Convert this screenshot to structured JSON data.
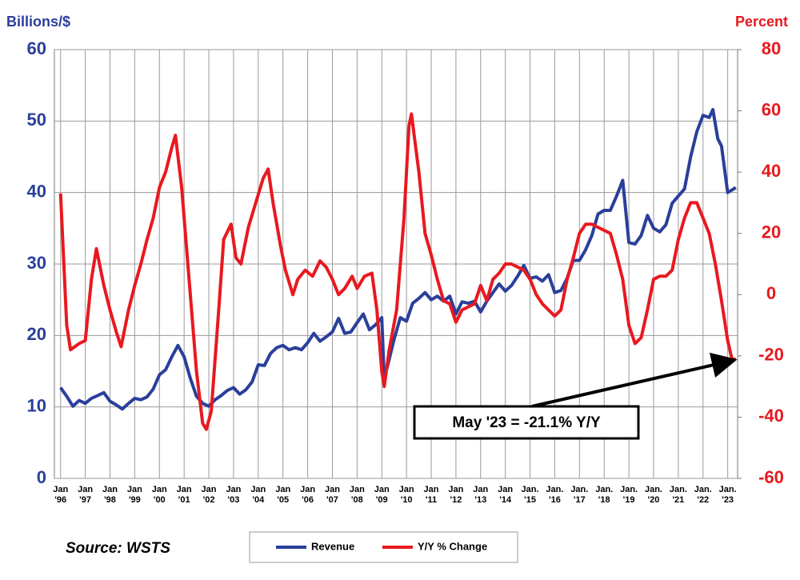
{
  "chart_data": {
    "type": "line",
    "y_label": "Billions/$",
    "y2_label": "Percent",
    "source": "Source: WSTS",
    "annotation": "May '23 = -21.1% Y/Y",
    "xlim": [
      1995.75,
      2023.4
    ],
    "xticks": [
      {
        "value": 1996,
        "label": "Jan '96"
      },
      {
        "value": 1997,
        "label": "Jan '97"
      },
      {
        "value": 1998,
        "label": "Jan '98"
      },
      {
        "value": 1999,
        "label": "Jan '99"
      },
      {
        "value": 2000,
        "label": "Jan '00"
      },
      {
        "value": 2001,
        "label": "Jan '01"
      },
      {
        "value": 2002,
        "label": "Jan '02"
      },
      {
        "value": 2003,
        "label": "Jan '03"
      },
      {
        "value": 2004,
        "label": "Jan '04"
      },
      {
        "value": 2005,
        "label": "Jan '05"
      },
      {
        "value": 2006,
        "label": "Jan '06"
      },
      {
        "value": 2007,
        "label": "Jan '07"
      },
      {
        "value": 2008,
        "label": "Jan '08"
      },
      {
        "value": 2009,
        "label": "Jan '09"
      },
      {
        "value": 2010,
        "label": "Jan '10"
      },
      {
        "value": 2011,
        "label": "Jan '11"
      },
      {
        "value": 2012,
        "label": "Jan '12"
      },
      {
        "value": 2013,
        "label": "Jan '13"
      },
      {
        "value": 2014,
        "label": "Jan '14"
      },
      {
        "value": 2015,
        "label": "Jan. '15"
      },
      {
        "value": 2016,
        "label": "Jan. '16"
      },
      {
        "value": 2017,
        "label": "Jan. '17"
      },
      {
        "value": 2018,
        "label": "Jan. '18"
      },
      {
        "value": 2019,
        "label": "Jan. '19"
      },
      {
        "value": 2020,
        "label": "Jan. '20"
      },
      {
        "value": 2021,
        "label": "Jan. '21"
      },
      {
        "value": 2022,
        "label": "Jan. '22"
      },
      {
        "value": 2023,
        "label": "Jan. '23"
      }
    ],
    "ylim": [
      0,
      60
    ],
    "yticks": [
      0,
      10,
      20,
      30,
      40,
      50,
      60
    ],
    "y2lim": [
      -60,
      80
    ],
    "y2ticks": [
      -60,
      -40,
      -20,
      0,
      20,
      40,
      60,
      80
    ],
    "grid": true,
    "series": [
      {
        "name": "Revenue",
        "color": "#2a3f9a",
        "x": [
          1996.0,
          1996.25,
          1996.5,
          1996.75,
          1997.0,
          1997.25,
          1997.5,
          1997.75,
          1998.0,
          1998.25,
          1998.5,
          1998.75,
          1999.0,
          1999.25,
          1999.5,
          1999.75,
          2000.0,
          2000.25,
          2000.5,
          2000.75,
          2001.0,
          2001.25,
          2001.5,
          2001.75,
          2002.0,
          2002.25,
          2002.5,
          2002.75,
          2003.0,
          2003.25,
          2003.5,
          2003.75,
          2004.0,
          2004.25,
          2004.5,
          2004.75,
          2005.0,
          2005.25,
          2005.5,
          2005.75,
          2006.0,
          2006.25,
          2006.5,
          2006.75,
          2007.0,
          2007.25,
          2007.5,
          2007.75,
          2008.0,
          2008.25,
          2008.5,
          2008.75,
          2009.0,
          2009.1,
          2009.25,
          2009.5,
          2009.75,
          2010.0,
          2010.25,
          2010.5,
          2010.75,
          2011.0,
          2011.25,
          2011.5,
          2011.75,
          2012.0,
          2012.25,
          2012.5,
          2012.75,
          2013.0,
          2013.25,
          2013.5,
          2013.75,
          2014.0,
          2014.25,
          2014.5,
          2014.75,
          2015.0,
          2015.25,
          2015.5,
          2015.75,
          2016.0,
          2016.25,
          2016.5,
          2016.75,
          2017.0,
          2017.25,
          2017.5,
          2017.75,
          2018.0,
          2018.25,
          2018.5,
          2018.75,
          2019.0,
          2019.25,
          2019.5,
          2019.75,
          2020.0,
          2020.25,
          2020.5,
          2020.75,
          2021.0,
          2021.25,
          2021.5,
          2021.75,
          2022.0,
          2022.25,
          2022.4,
          2022.6,
          2022.75,
          2023.0,
          2023.33
        ],
        "values": [
          12.7,
          11.5,
          10.1,
          10.9,
          10.5,
          11.2,
          11.6,
          12.0,
          10.8,
          10.3,
          9.7,
          10.5,
          11.2,
          11.0,
          11.4,
          12.5,
          14.5,
          15.2,
          17.0,
          18.6,
          17.0,
          14.0,
          11.5,
          10.5,
          10.1,
          11.0,
          11.6,
          12.3,
          12.7,
          11.8,
          12.4,
          13.5,
          15.9,
          15.8,
          17.5,
          18.3,
          18.6,
          18.0,
          18.3,
          18.0,
          19.0,
          20.3,
          19.2,
          19.8,
          20.5,
          22.4,
          20.3,
          20.5,
          21.8,
          23.0,
          20.8,
          21.5,
          22.5,
          14.0,
          16.0,
          19.5,
          22.5,
          22.0,
          24.5,
          25.2,
          26.0,
          25.0,
          25.5,
          24.8,
          25.5,
          23.0,
          24.7,
          24.5,
          24.8,
          23.3,
          24.8,
          26.0,
          27.2,
          26.2,
          27.0,
          28.3,
          29.8,
          28.0,
          28.2,
          27.6,
          28.5,
          26.0,
          26.3,
          28.0,
          30.5,
          30.5,
          32.0,
          34.0,
          37.0,
          37.5,
          37.5,
          39.5,
          41.7,
          33.0,
          32.8,
          34.0,
          36.8,
          35.0,
          34.5,
          35.5,
          38.5,
          39.5,
          40.5,
          45.0,
          48.5,
          50.8,
          50.5,
          51.6,
          47.5,
          46.5,
          40.0,
          40.7
        ]
      },
      {
        "name": "Y/Y % Change",
        "color": "#e8191f",
        "axis": "y2",
        "x": [
          1996.0,
          1996.25,
          1996.4,
          1996.75,
          1997.0,
          1997.25,
          1997.45,
          1997.75,
          1998.0,
          1998.25,
          1998.45,
          1998.75,
          1999.0,
          1999.25,
          1999.5,
          1999.75,
          2000.0,
          2000.25,
          2000.5,
          2000.65,
          2000.9,
          2001.25,
          2001.5,
          2001.75,
          2001.9,
          2002.1,
          2002.4,
          2002.6,
          2002.9,
          2003.1,
          2003.3,
          2003.6,
          2003.9,
          2004.2,
          2004.4,
          2004.6,
          2004.9,
          2005.1,
          2005.4,
          2005.6,
          2005.9,
          2006.2,
          2006.5,
          2006.75,
          2007.0,
          2007.25,
          2007.5,
          2007.8,
          2008.0,
          2008.3,
          2008.6,
          2008.8,
          2009.0,
          2009.1,
          2009.3,
          2009.6,
          2009.9,
          2010.1,
          2010.2,
          2010.5,
          2010.75,
          2011.0,
          2011.25,
          2011.5,
          2011.75,
          2012.0,
          2012.25,
          2012.5,
          2012.75,
          2013.0,
          2013.25,
          2013.5,
          2013.75,
          2014.0,
          2014.25,
          2014.5,
          2014.75,
          2015.0,
          2015.25,
          2015.5,
          2015.75,
          2016.0,
          2016.25,
          2016.5,
          2016.75,
          2017.0,
          2017.25,
          2017.5,
          2017.75,
          2018.0,
          2018.25,
          2018.5,
          2018.75,
          2019.0,
          2019.25,
          2019.5,
          2019.75,
          2020.0,
          2020.25,
          2020.5,
          2020.75,
          2021.0,
          2021.25,
          2021.5,
          2021.75,
          2022.0,
          2022.25,
          2022.5,
          2022.75,
          2023.0,
          2023.17,
          2023.33
        ],
        "values": [
          33,
          -10,
          -18,
          -16,
          -15,
          5,
          15,
          3,
          -5,
          -12,
          -17,
          -5,
          3,
          10,
          18,
          25,
          35,
          40,
          48,
          52,
          35,
          0,
          -25,
          -42,
          -44,
          -38,
          -5,
          18,
          23,
          12,
          10,
          22,
          30,
          38,
          41,
          30,
          16,
          8,
          0,
          5,
          8,
          6,
          11,
          9,
          5,
          0,
          2,
          6,
          2,
          6,
          7,
          -5,
          -25,
          -30,
          -18,
          -5,
          25,
          55,
          59,
          40,
          20,
          13,
          5,
          -2,
          -3,
          -9,
          -5,
          -4,
          -3,
          3,
          -2,
          5,
          7,
          10,
          10,
          9,
          8,
          5,
          0,
          -3,
          -5,
          -7,
          -5,
          5,
          12,
          20,
          23,
          23,
          22,
          21,
          20,
          13,
          5,
          -10,
          -16,
          -14,
          -5,
          5,
          6,
          6,
          8,
          18,
          25,
          30,
          30,
          25,
          20,
          10,
          -2,
          -15,
          -21,
          -21.1
        ]
      }
    ]
  }
}
